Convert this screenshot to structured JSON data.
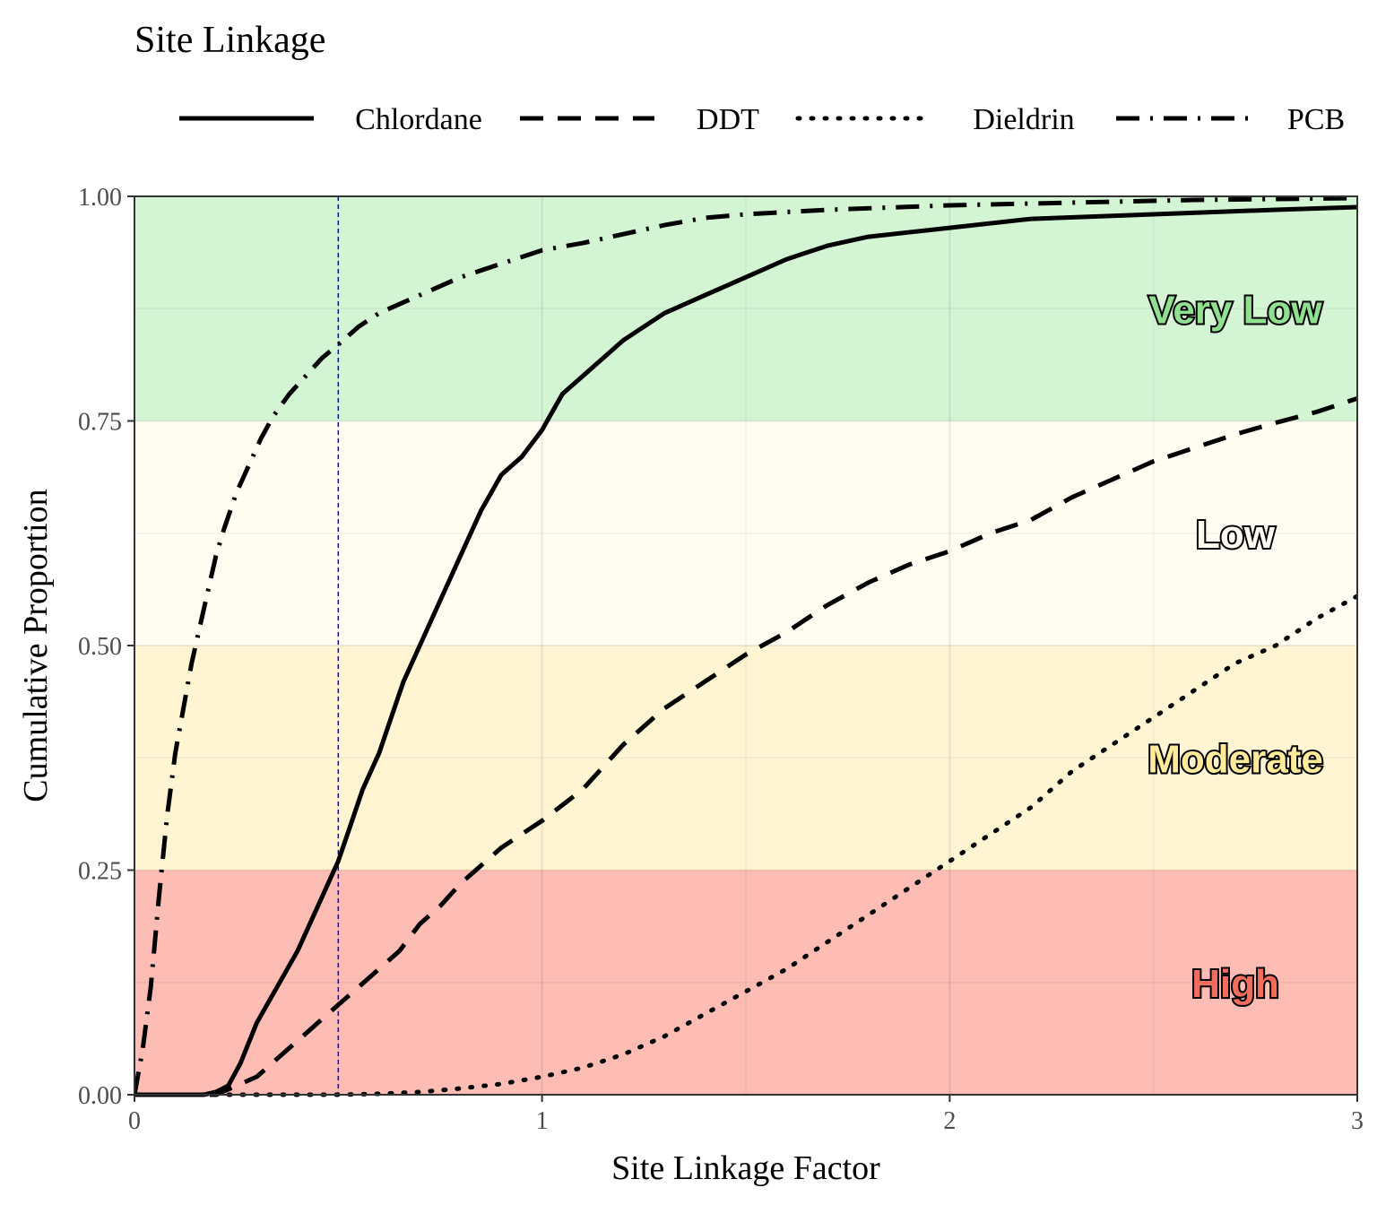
{
  "chart_data": {
    "type": "line",
    "title": "Site Linkage",
    "xlabel": "Site Linkage Factor",
    "ylabel": "Cumulative Proportion",
    "xlim": [
      0,
      3
    ],
    "ylim": [
      0,
      1
    ],
    "x_ticks": [
      "0",
      "1",
      "2",
      "3"
    ],
    "y_ticks": [
      "0.00",
      "0.25",
      "0.50",
      "0.75",
      "1.00"
    ],
    "grid": true,
    "legend_position": "top",
    "reference_line": {
      "x": 0.5,
      "color": "#0000ff",
      "style": "dashed"
    },
    "bands": [
      {
        "label": "High",
        "y0": 0.0,
        "y1": 0.25,
        "fill": "#fdbcb4",
        "text_color": "#f26d5b"
      },
      {
        "label": "Moderate",
        "y0": 0.25,
        "y1": 0.5,
        "fill": "#fff5d3",
        "text_color": "#ffeb99"
      },
      {
        "label": "Low",
        "y0": 0.5,
        "y1": 0.75,
        "fill": "#fffdf2",
        "text_color": "#fffdf2"
      },
      {
        "label": "Very Low",
        "y0": 0.75,
        "y1": 1.0,
        "fill": "#d4f5d4",
        "text_color": "#8fe08f"
      }
    ],
    "series": [
      {
        "name": "Chlordane",
        "dash": "solid",
        "x": [
          0,
          0.17,
          0.2,
          0.23,
          0.26,
          0.3,
          0.35,
          0.4,
          0.45,
          0.5,
          0.53,
          0.56,
          0.6,
          0.63,
          0.66,
          0.7,
          0.73,
          0.76,
          0.8,
          0.85,
          0.9,
          0.95,
          1.0,
          1.05,
          1.1,
          1.2,
          1.3,
          1.4,
          1.5,
          1.6,
          1.7,
          1.8,
          2.0,
          2.2,
          2.5,
          2.8,
          3.0
        ],
        "y": [
          0,
          0,
          0.003,
          0.01,
          0.035,
          0.08,
          0.12,
          0.16,
          0.21,
          0.26,
          0.3,
          0.34,
          0.38,
          0.42,
          0.46,
          0.5,
          0.53,
          0.56,
          0.6,
          0.65,
          0.69,
          0.71,
          0.74,
          0.78,
          0.8,
          0.84,
          0.87,
          0.89,
          0.91,
          0.93,
          0.945,
          0.955,
          0.965,
          0.975,
          0.98,
          0.985,
          0.988
        ]
      },
      {
        "name": "DDT",
        "dash": "dashed",
        "x": [
          0,
          0.2,
          0.25,
          0.3,
          0.35,
          0.4,
          0.45,
          0.5,
          0.55,
          0.6,
          0.65,
          0.7,
          0.75,
          0.8,
          0.85,
          0.9,
          0.95,
          1.0,
          1.1,
          1.2,
          1.3,
          1.4,
          1.5,
          1.6,
          1.7,
          1.8,
          1.9,
          2.0,
          2.1,
          2.2,
          2.3,
          2.4,
          2.5,
          2.6,
          2.7,
          2.8,
          2.9,
          3.0
        ],
        "y": [
          0,
          0,
          0.01,
          0.02,
          0.04,
          0.06,
          0.08,
          0.1,
          0.12,
          0.14,
          0.16,
          0.19,
          0.21,
          0.235,
          0.255,
          0.275,
          0.29,
          0.305,
          0.34,
          0.39,
          0.43,
          0.46,
          0.49,
          0.515,
          0.545,
          0.57,
          0.59,
          0.605,
          0.625,
          0.64,
          0.665,
          0.685,
          0.705,
          0.72,
          0.735,
          0.748,
          0.76,
          0.775
        ]
      },
      {
        "name": "Dieldrin",
        "dash": "dotted",
        "x": [
          0,
          0.5,
          0.6,
          0.7,
          0.8,
          0.9,
          1.0,
          1.1,
          1.2,
          1.3,
          1.4,
          1.5,
          1.6,
          1.7,
          1.8,
          1.9,
          2.0,
          2.1,
          2.2,
          2.3,
          2.4,
          2.5,
          2.6,
          2.7,
          2.8,
          2.9,
          3.0
        ],
        "y": [
          0,
          0,
          0.001,
          0.003,
          0.007,
          0.012,
          0.02,
          0.03,
          0.045,
          0.065,
          0.09,
          0.115,
          0.14,
          0.17,
          0.2,
          0.23,
          0.26,
          0.29,
          0.32,
          0.36,
          0.39,
          0.42,
          0.45,
          0.48,
          0.5,
          0.53,
          0.555
        ]
      },
      {
        "name": "PCB",
        "dash": "dashdot",
        "x": [
          0,
          0.02,
          0.04,
          0.06,
          0.08,
          0.1,
          0.12,
          0.14,
          0.16,
          0.18,
          0.2,
          0.22,
          0.25,
          0.28,
          0.31,
          0.34,
          0.38,
          0.42,
          0.46,
          0.5,
          0.55,
          0.6,
          0.65,
          0.7,
          0.8,
          0.9,
          1.0,
          1.1,
          1.2,
          1.3,
          1.4,
          1.5,
          1.7,
          2.0,
          2.3,
          2.6,
          3.0
        ],
        "y": [
          0,
          0.05,
          0.12,
          0.22,
          0.31,
          0.38,
          0.43,
          0.48,
          0.52,
          0.56,
          0.6,
          0.63,
          0.67,
          0.7,
          0.73,
          0.755,
          0.78,
          0.8,
          0.82,
          0.835,
          0.855,
          0.87,
          0.88,
          0.89,
          0.91,
          0.925,
          0.94,
          0.948,
          0.958,
          0.968,
          0.976,
          0.98,
          0.985,
          0.99,
          0.993,
          0.996,
          0.998
        ]
      }
    ]
  }
}
